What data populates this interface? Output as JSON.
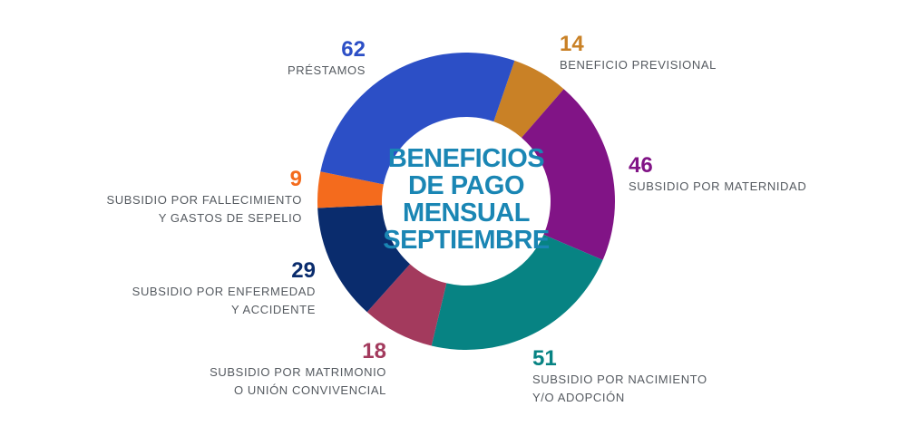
{
  "chart_data": {
    "type": "pie",
    "variant": "donut",
    "title_lines": [
      "BENEFICIOS",
      "DE PAGO",
      "MENSUAL",
      "SEPTIEMBRE"
    ],
    "slices": [
      {
        "label": "BENEFICIO PREVISIONAL",
        "value": 14,
        "color": "#c98126"
      },
      {
        "label": "SUBSIDIO POR MATERNIDAD",
        "value": 46,
        "color": "#811486"
      },
      {
        "label": "SUBSIDIO POR NACIMIENTO\nY/O ADOPCIÓN",
        "value": 51,
        "color": "#078383"
      },
      {
        "label": "SUBSIDIO POR MATRIMONIO\nO UNIÓN CONVIVENCIAL",
        "value": 18,
        "color": "#a33a5d"
      },
      {
        "label": "SUBSIDIO POR ENFERMEDAD\nY ACCIDENTE",
        "value": 29,
        "color": "#0a2c6d"
      },
      {
        "label": "SUBSIDIO POR FALLECIMIENTO\nY GASTOS DE SEPELIO",
        "value": 9,
        "color": "#f46b1d"
      },
      {
        "label": "PRÉSTAMOS",
        "value": 62,
        "color": "#2c4fc6"
      }
    ]
  }
}
